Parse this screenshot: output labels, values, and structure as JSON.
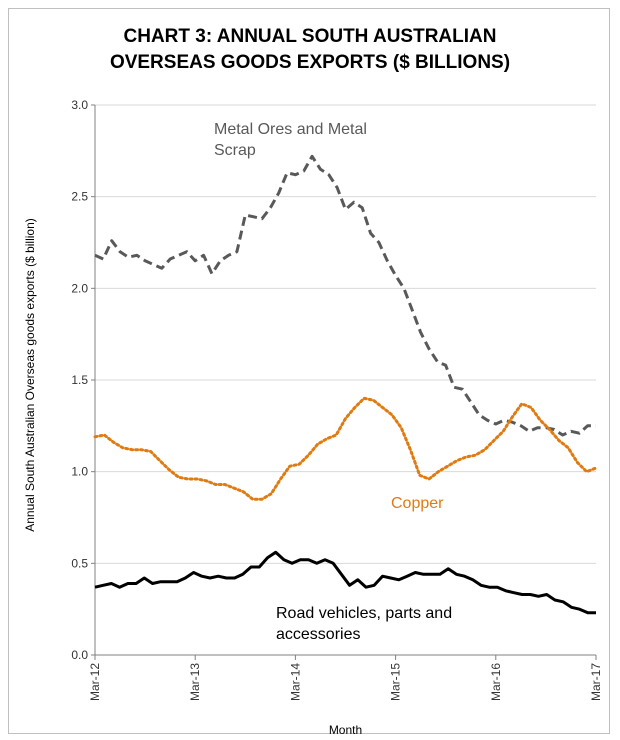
{
  "chart_data": {
    "type": "line",
    "title_lines": [
      "CHART 3: ANNUAL SOUTH AUSTRALIAN",
      "OVERSEAS GOODS EXPORTS ($ BILLIONS)"
    ],
    "xlabel": "Month",
    "ylabel": "Annual South Australian Overseas  goods exports  ($ billion)",
    "ylim": [
      0,
      3
    ],
    "y_ticks": [
      "0.0",
      "0.5",
      "1.0",
      "1.5",
      "2.0",
      "2.5",
      "3.0"
    ],
    "x_ticks": [
      "Mar-12",
      "Mar-13",
      "Mar-14",
      "Mar-15",
      "Mar-16",
      "Mar-17"
    ],
    "x_start": "Mar-12",
    "x_end": "Mar-17",
    "grid": true,
    "series": [
      {
        "name": "Metal Ores and Metal Scrap",
        "label_lines": [
          "Metal Ores and Metal",
          "Scrap"
        ],
        "color": "#595959",
        "dash": "dash",
        "values": [
          2.18,
          2.16,
          2.26,
          2.2,
          2.17,
          2.18,
          2.15,
          2.13,
          2.11,
          2.16,
          2.18,
          2.2,
          2.15,
          2.18,
          2.08,
          2.15,
          2.18,
          2.2,
          2.4,
          2.39,
          2.38,
          2.44,
          2.52,
          2.63,
          2.62,
          2.64,
          2.72,
          2.65,
          2.62,
          2.55,
          2.43,
          2.47,
          2.44,
          2.3,
          2.25,
          2.15,
          2.07,
          2.0,
          1.88,
          1.76,
          1.67,
          1.6,
          1.58,
          1.46,
          1.45,
          1.38,
          1.31,
          1.28,
          1.26,
          1.28,
          1.27,
          1.25,
          1.22,
          1.24,
          1.24,
          1.23,
          1.2,
          1.22,
          1.21,
          1.25,
          1.25
        ]
      },
      {
        "name": "Copper",
        "label_lines": [
          "Copper"
        ],
        "color": "#e07b12",
        "dash": "dot",
        "values": [
          1.19,
          1.2,
          1.16,
          1.13,
          1.12,
          1.12,
          1.11,
          1.06,
          1.01,
          0.97,
          0.96,
          0.96,
          0.95,
          0.93,
          0.93,
          0.91,
          0.89,
          0.85,
          0.85,
          0.88,
          0.96,
          1.03,
          1.04,
          1.09,
          1.15,
          1.18,
          1.2,
          1.29,
          1.35,
          1.4,
          1.39,
          1.35,
          1.31,
          1.24,
          1.12,
          0.98,
          0.96,
          1.0,
          1.03,
          1.06,
          1.08,
          1.09,
          1.12,
          1.17,
          1.22,
          1.3,
          1.37,
          1.35,
          1.28,
          1.23,
          1.17,
          1.13,
          1.05,
          1.0,
          1.02
        ]
      },
      {
        "name": "Road vehicles, parts and accessories",
        "label_lines": [
          "Road vehicles, parts and",
          "accessories"
        ],
        "color": "#000000",
        "dash": "solid",
        "values": [
          0.37,
          0.38,
          0.39,
          0.37,
          0.39,
          0.39,
          0.42,
          0.39,
          0.4,
          0.4,
          0.4,
          0.42,
          0.45,
          0.43,
          0.42,
          0.43,
          0.42,
          0.42,
          0.44,
          0.48,
          0.48,
          0.53,
          0.56,
          0.52,
          0.5,
          0.52,
          0.52,
          0.5,
          0.52,
          0.5,
          0.44,
          0.38,
          0.41,
          0.37,
          0.38,
          0.43,
          0.42,
          0.41,
          0.43,
          0.45,
          0.44,
          0.44,
          0.44,
          0.47,
          0.44,
          0.43,
          0.41,
          0.38,
          0.37,
          0.37,
          0.35,
          0.34,
          0.33,
          0.33,
          0.32,
          0.33,
          0.3,
          0.29,
          0.26,
          0.25,
          0.23,
          0.23
        ]
      }
    ]
  }
}
